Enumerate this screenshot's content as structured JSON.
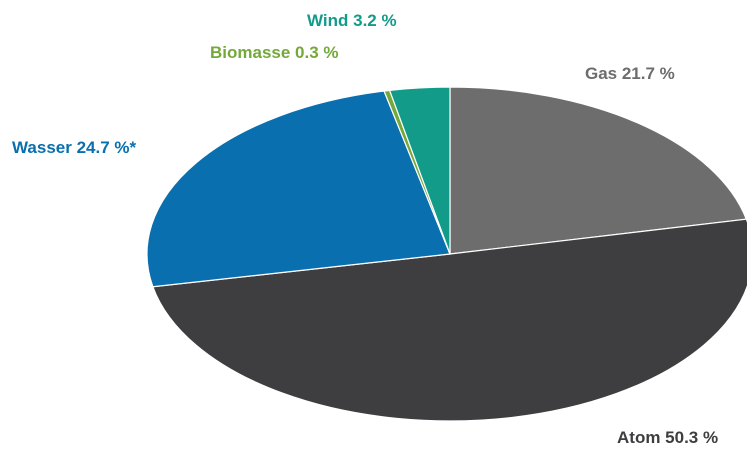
{
  "chart_data": {
    "type": "pie",
    "title": "",
    "slices": [
      {
        "name": "Gas",
        "value": 21.7,
        "label": "Gas 21.7 %",
        "color": "#6d6d6d",
        "label_color": "#6d6d6d"
      },
      {
        "name": "Atom",
        "value": 50.3,
        "label": "Atom 50.3 %",
        "color": "#3e3e40",
        "label_color": "#3e3e40"
      },
      {
        "name": "Wasser",
        "value": 24.7,
        "label": "Wasser 24.7 %*",
        "color": "#0a6fae",
        "label_color": "#0a6fae"
      },
      {
        "name": "Biomasse",
        "value": 0.3,
        "label": "Biomasse 0.3 %",
        "color": "#74a93a",
        "label_color": "#74a93a"
      },
      {
        "name": "Wind",
        "value": 3.2,
        "label": "Wind 3.2 %",
        "color": "#139b8a",
        "label_color": "#139b8a"
      }
    ],
    "start_angle": "12 o'clock",
    "direction": "clockwise",
    "legend": "none"
  }
}
